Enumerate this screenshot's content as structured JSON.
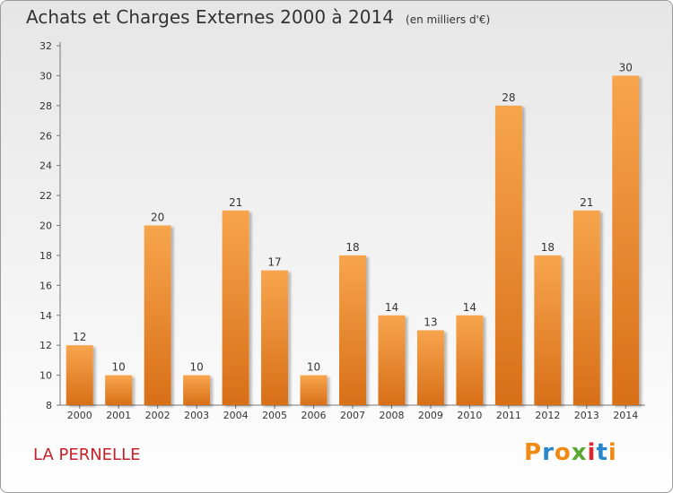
{
  "header": {
    "title": "Achats et Charges Externes 2000 à 2014",
    "unit_note": "(en milliers d'€)"
  },
  "footer": {
    "commune": "LA PERNELLE",
    "logo": "Proxiti"
  },
  "colors": {
    "bar_light": "#f7a54d",
    "bar_dark": "#d86f18",
    "commune_text": "#c8202a",
    "logo_letters": [
      "#f08a12",
      "#2a86cc",
      "#f08a12",
      "#5aa832",
      "#e0262f",
      "#2a86cc",
      "#f08a12"
    ]
  },
  "chart_data": {
    "type": "bar",
    "categories": [
      "2000",
      "2001",
      "2002",
      "2003",
      "2004",
      "2005",
      "2006",
      "2007",
      "2008",
      "2009",
      "2010",
      "2011",
      "2012",
      "2013",
      "2014"
    ],
    "values": [
      12,
      10,
      20,
      10,
      21,
      17,
      10,
      18,
      14,
      13,
      14,
      28,
      18,
      21,
      30
    ],
    "ylim": [
      8,
      32
    ],
    "yticks": [
      8,
      10,
      12,
      14,
      16,
      18,
      20,
      22,
      24,
      26,
      28,
      30,
      32
    ],
    "grid": false,
    "data_labels": true
  }
}
